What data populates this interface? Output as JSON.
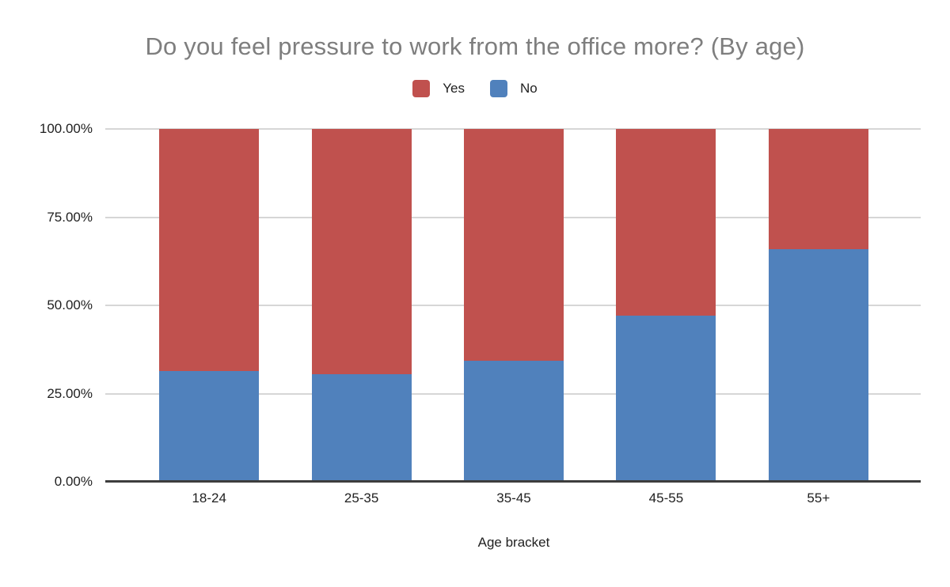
{
  "chart_data": {
    "type": "bar",
    "stacked": true,
    "percent_stacked": true,
    "title": "Do you feel pressure to work from the office more? (By age)",
    "categories": [
      "18-24",
      "25-35",
      "35-45",
      "45-55",
      "55+"
    ],
    "series": [
      {
        "name": "Yes",
        "color": "#c0514e",
        "values": [
          68.6,
          69.5,
          65.7,
          52.9,
          34.1
        ]
      },
      {
        "name": "No",
        "color": "#5081bc",
        "values": [
          31.4,
          30.5,
          34.3,
          47.1,
          65.9
        ]
      }
    ],
    "xlabel": "Age bracket",
    "ylabel": "",
    "ylim": [
      0,
      100
    ],
    "yticks": [
      "100.00%",
      "75.00%",
      "50.00%",
      "25.00%",
      "0.00%"
    ],
    "legend_position": "top",
    "grid": true,
    "colors": {
      "title_text": "#7e7e7e",
      "axis_text": "#212121",
      "gridline": "#d6d6d6",
      "axis_line": "#3d3d3d",
      "background": "#ffffff"
    }
  }
}
